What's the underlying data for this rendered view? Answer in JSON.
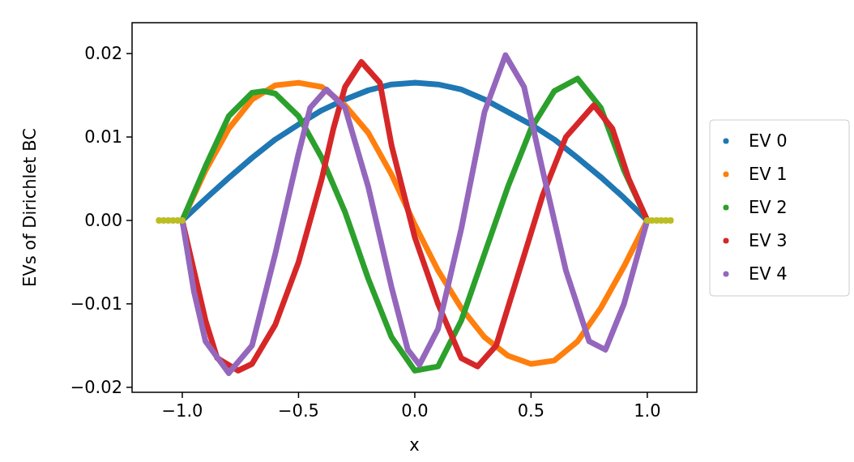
{
  "chart_data": {
    "type": "line",
    "xlabel": "x",
    "ylabel": "EVs of Dirichlet BC",
    "xlim": [
      -1.216,
      1.213
    ],
    "ylim": [
      -0.0206,
      0.0237
    ],
    "xticks": [
      {
        "value": -1,
        "label": "−1.0"
      },
      {
        "value": -0.5,
        "label": "−0.5"
      },
      {
        "value": 0,
        "label": "0.0"
      },
      {
        "value": 0.5,
        "label": "0.5"
      },
      {
        "value": 1,
        "label": "1.0"
      }
    ],
    "yticks": [
      {
        "value": -0.02,
        "label": "−0.02"
      },
      {
        "value": -0.01,
        "label": "−0.01"
      },
      {
        "value": 0,
        "label": "0.00"
      },
      {
        "value": 0.01,
        "label": "0.01"
      },
      {
        "value": 0.02,
        "label": "0.02"
      }
    ],
    "grid": false,
    "legend": "right",
    "line_style": "solid",
    "series": [
      {
        "name": "EV 0",
        "color": "#1f77b4",
        "x": [
          -1,
          -0.9,
          -0.8,
          -0.7,
          -0.6,
          -0.5,
          -0.4,
          -0.3,
          -0.2,
          -0.1,
          0,
          0.1,
          0.2,
          0.3,
          0.4,
          0.5,
          0.6,
          0.7,
          0.8,
          0.9,
          1
        ],
        "values": [
          0,
          0.0026,
          0.0051,
          0.0075,
          0.0097,
          0.0115,
          0.0132,
          0.0145,
          0.0156,
          0.0163,
          0.0165,
          0.0163,
          0.0157,
          0.0145,
          0.013,
          0.0115,
          0.0097,
          0.0075,
          0.0052,
          0.0027,
          0
        ]
      },
      {
        "name": "EV 1",
        "color": "#ff7f0e",
        "x": [
          -1,
          -0.9,
          -0.8,
          -0.7,
          -0.6,
          -0.5,
          -0.4,
          -0.3,
          -0.2,
          -0.1,
          0,
          0.1,
          0.2,
          0.3,
          0.4,
          0.5,
          0.6,
          0.7,
          0.8,
          0.9,
          1
        ],
        "values": [
          0,
          0.006,
          0.011,
          0.0145,
          0.0162,
          0.0165,
          0.016,
          0.0138,
          0.0105,
          0.0055,
          -0.0005,
          -0.006,
          -0.0105,
          -0.014,
          -0.0162,
          -0.0172,
          -0.0168,
          -0.0145,
          -0.0105,
          -0.0055,
          0
        ]
      },
      {
        "name": "EV 2",
        "color": "#2ca02c",
        "x": [
          -1,
          -0.9,
          -0.8,
          -0.7,
          -0.65,
          -0.6,
          -0.5,
          -0.4,
          -0.3,
          -0.2,
          -0.1,
          0,
          0.1,
          0.2,
          0.3,
          0.4,
          0.5,
          0.6,
          0.7,
          0.8,
          0.9,
          1
        ],
        "values": [
          0,
          0.0065,
          0.0125,
          0.0153,
          0.0155,
          0.0152,
          0.0125,
          0.0075,
          0.001,
          -0.007,
          -0.014,
          -0.018,
          -0.0175,
          -0.012,
          -0.004,
          0.004,
          0.011,
          0.0155,
          0.017,
          0.0135,
          0.006,
          0
        ]
      },
      {
        "name": "EV 3",
        "color": "#d62728",
        "x": [
          -1,
          -0.95,
          -0.9,
          -0.85,
          -0.76,
          -0.7,
          -0.6,
          -0.5,
          -0.4,
          -0.35,
          -0.3,
          -0.23,
          -0.15,
          -0.1,
          0,
          0.1,
          0.2,
          0.27,
          0.35,
          0.45,
          0.55,
          0.65,
          0.77,
          0.85,
          0.92,
          1
        ],
        "values": [
          0,
          -0.006,
          -0.012,
          -0.0165,
          -0.018,
          -0.0172,
          -0.0125,
          -0.005,
          0.005,
          0.011,
          0.016,
          0.019,
          0.0165,
          0.009,
          -0.002,
          -0.01,
          -0.0165,
          -0.0175,
          -0.015,
          -0.006,
          0.003,
          0.01,
          0.0138,
          0.011,
          0.005,
          0
        ]
      },
      {
        "name": "EV 4",
        "color": "#9467bd",
        "x": [
          -1,
          -0.95,
          -0.9,
          -0.8,
          -0.7,
          -0.6,
          -0.5,
          -0.45,
          -0.38,
          -0.3,
          -0.2,
          -0.1,
          -0.03,
          0.02,
          0.1,
          0.2,
          0.3,
          0.39,
          0.47,
          0.55,
          0.65,
          0.75,
          0.82,
          0.9,
          0.97,
          1
        ],
        "values": [
          0,
          -0.0085,
          -0.0145,
          -0.0183,
          -0.015,
          -0.004,
          0.008,
          0.0135,
          0.0157,
          0.0135,
          0.004,
          -0.008,
          -0.0155,
          -0.0173,
          -0.013,
          -0.001,
          0.013,
          0.0198,
          0.016,
          0.006,
          -0.006,
          -0.0145,
          -0.0155,
          -0.01,
          -0.003,
          0
        ]
      },
      {
        "type": "scatter",
        "color": "#bcbd22",
        "x": [
          -1.1,
          -1.08,
          -1.06,
          -1.04,
          -1.02,
          -1,
          1,
          1.02,
          1.04,
          1.06,
          1.08,
          1.1
        ],
        "values": [
          0,
          0,
          0,
          0,
          0,
          0,
          0,
          0,
          0,
          0,
          0,
          0
        ]
      }
    ]
  }
}
